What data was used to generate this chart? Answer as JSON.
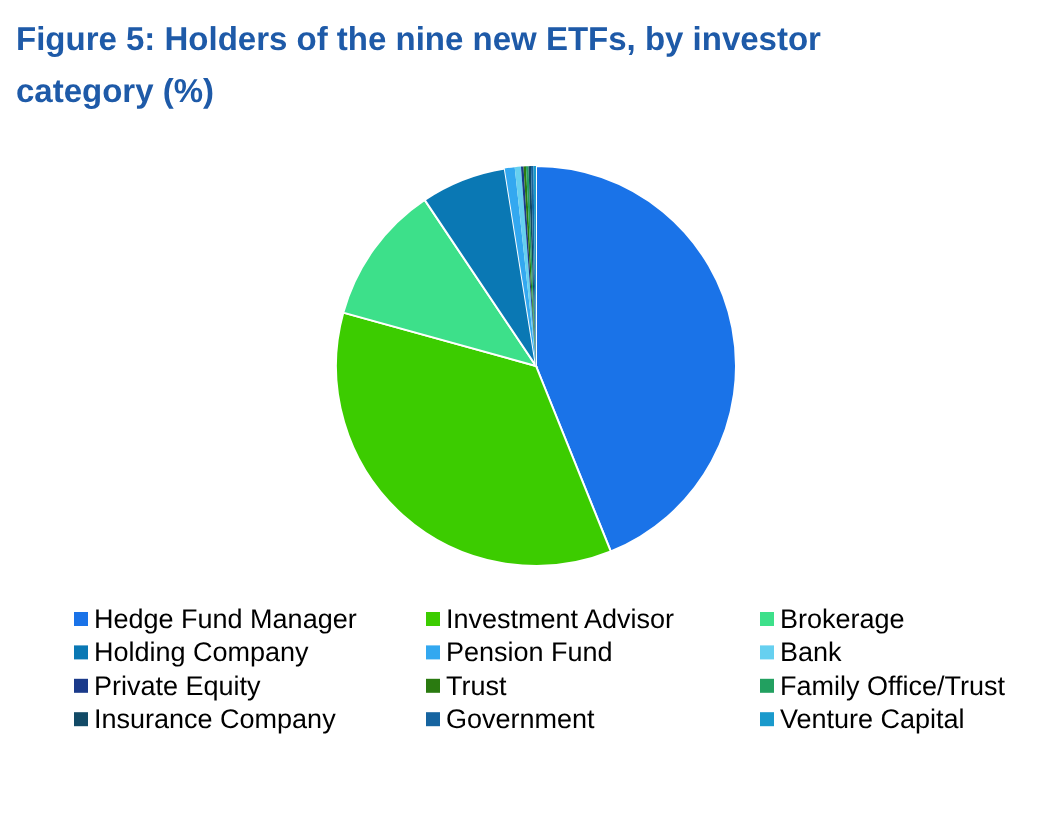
{
  "chart_data": {
    "type": "pie",
    "title": "Figure 5: Holders of the nine new ETFs, by investor category (%)",
    "legend": "bottom",
    "categories": [
      "Hedge Fund Manager",
      "Investment Advisor",
      "Brokerage",
      "Holding Company",
      "Pension Fund",
      "Bank",
      "Private Equity",
      "Trust",
      "Family Office/Trust",
      "Insurance Company",
      "Government",
      "Venture Capital"
    ],
    "values": [
      43.9,
      35.4,
      11.3,
      6.9,
      0.8,
      0.5,
      0.2,
      0.2,
      0.2,
      0.2,
      0.2,
      0.2
    ],
    "colors": [
      "#1a73e8",
      "#3ccc00",
      "#3de08a",
      "#0a78b4",
      "#33a8f0",
      "#66d0f0",
      "#1a3a8a",
      "#2a7a10",
      "#22a060",
      "#124a66",
      "#1664a0",
      "#1a9acc"
    ]
  }
}
